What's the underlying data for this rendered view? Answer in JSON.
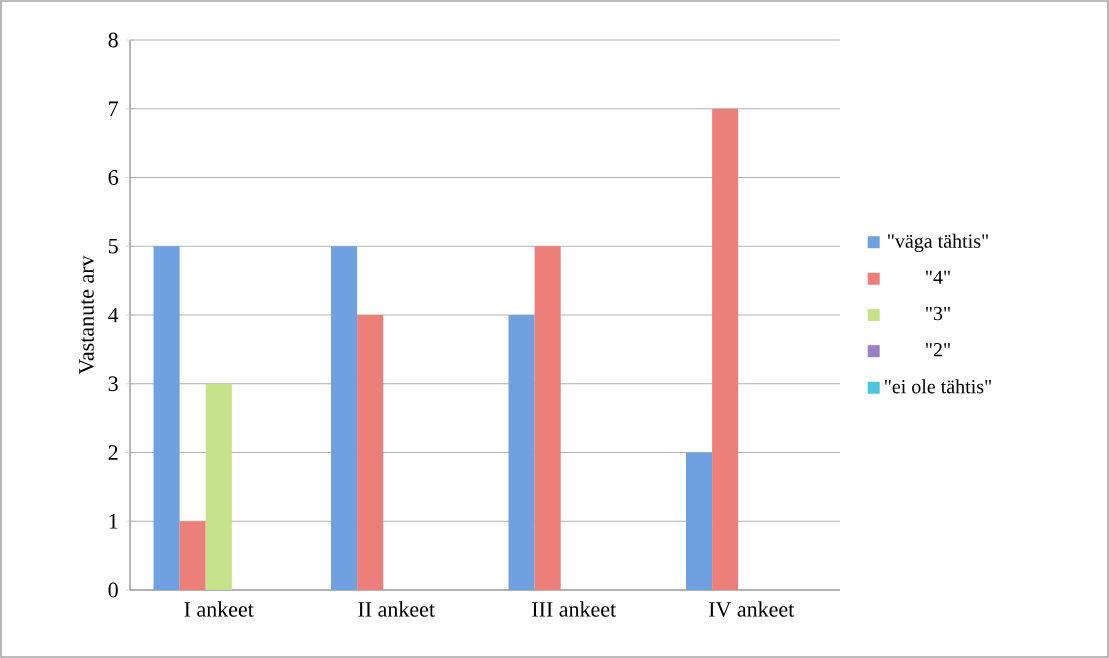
{
  "chart_data": {
    "type": "bar",
    "ylabel": "Vastanute arv",
    "categories": [
      "I ankeet",
      "II ankeet",
      "III ankeet",
      "IV ankeet"
    ],
    "series": [
      {
        "name": "\"väga tähtis\"",
        "color": "#6fa0e0",
        "values": [
          5,
          5,
          4,
          2
        ]
      },
      {
        "name": "\"4\"",
        "color": "#ec7f7a",
        "values": [
          1,
          4,
          5,
          7
        ]
      },
      {
        "name": "\"3\"",
        "color": "#c6e28a",
        "values": [
          3,
          0,
          0,
          0
        ]
      },
      {
        "name": "\"2\"",
        "color": "#9b7fc4",
        "values": [
          0,
          0,
          0,
          0
        ]
      },
      {
        "name": "\"ei ole tähtis\"",
        "color": "#4cc6e0",
        "values": [
          0,
          0,
          0,
          0
        ]
      }
    ],
    "ylim": [
      0,
      8
    ],
    "yticks": [
      0,
      1,
      2,
      3,
      4,
      5,
      6,
      7,
      8
    ],
    "grid": "y",
    "legend": "right"
  }
}
